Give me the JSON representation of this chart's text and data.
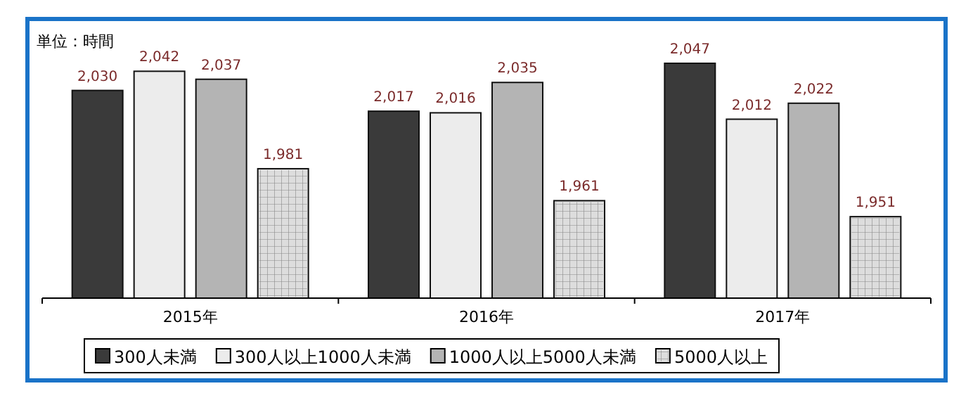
{
  "chart_data": {
    "type": "bar",
    "categories": [
      "2015年",
      "2016年",
      "2017年"
    ],
    "series": [
      {
        "name": "300人未満",
        "color": "#3a3a3a",
        "values": [
          2030,
          2017,
          2047
        ],
        "value_labels": [
          "2,030",
          "2,017",
          "2,047"
        ]
      },
      {
        "name": "300人以上1000人未満",
        "color": "#ececec",
        "values": [
          2042,
          2016,
          2012
        ],
        "value_labels": [
          "2,042",
          "2,016",
          "2,012"
        ]
      },
      {
        "name": "1000人以上5000人未満",
        "color": "#b4b4b4",
        "values": [
          2037,
          2035,
          2022
        ],
        "value_labels": [
          "2,037",
          "2,035",
          "2,022"
        ]
      },
      {
        "name": "5000人以上",
        "color": "#dddddd",
        "values": [
          1981,
          1961,
          1951
        ],
        "value_labels": [
          "1,981",
          "1,961",
          "1,951"
        ]
      }
    ],
    "ylim": [
      1900,
      2047
    ],
    "legend": "bottom",
    "tick_labels": "x",
    "annotations": [
      "単位：時間"
    ]
  }
}
